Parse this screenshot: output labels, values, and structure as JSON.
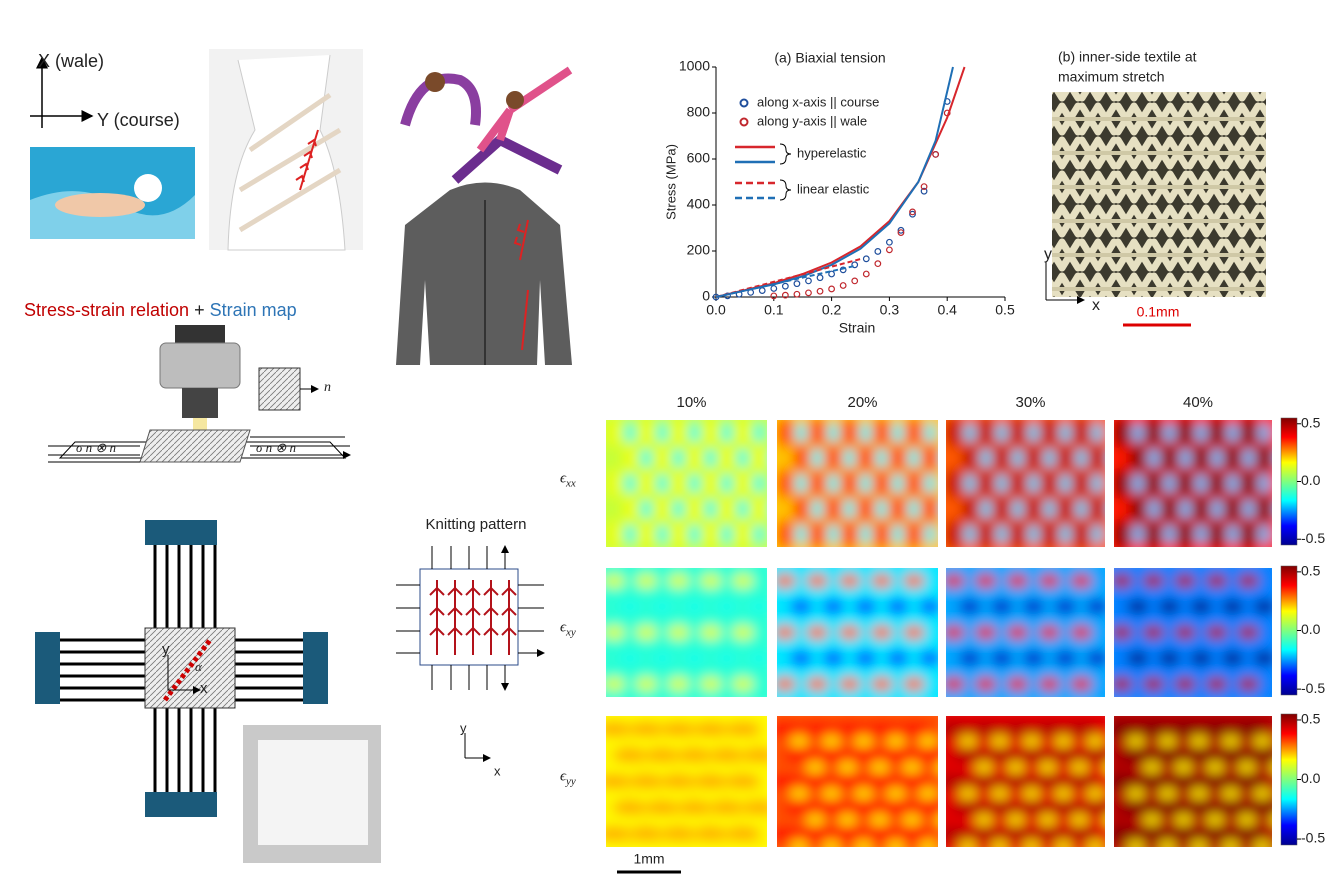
{
  "figure": {
    "axes_label": {
      "x": "X (wale)",
      "y": "Y (course)"
    },
    "method": {
      "left": "Stress-strain relation",
      "plus": "+",
      "right": "Strain map"
    },
    "camera": {
      "normal": "n",
      "traction_left": "σ n ⊗ n",
      "traction_right": "σ n ⊗ n"
    },
    "specimen": {
      "y": "y",
      "x": "x",
      "angle": "α"
    },
    "knitting": {
      "title": "Knitting pattern",
      "y": "y",
      "x": "x"
    },
    "textile": {
      "title_lines": [
        "(b) inner-side textile at",
        "maximum stretch"
      ],
      "y": "y",
      "x": "x",
      "scale": "0.1mm"
    },
    "strain_maps": {
      "columns": [
        "10%",
        "20%",
        "30%",
        "40%"
      ],
      "rows": [
        {
          "symbol": "ϵ",
          "subscript": "xx"
        },
        {
          "symbol": "ϵ",
          "subscript": "xy"
        },
        {
          "symbol": "ϵ",
          "subscript": "yy"
        }
      ],
      "colorbar_lim": [
        -0.55,
        0.55
      ],
      "colorbar_ticks": [
        0.5,
        {
          "value": 0,
          "label": "0.0"
        },
        -0.5
      ],
      "scale": "1mm"
    }
  },
  "chart_data": {
    "type": "scatter",
    "title": "(a) Biaxial tension",
    "xlabel": "Strain",
    "ylabel": "Stress (MPa)",
    "xlim": [
      0,
      0.5
    ],
    "ylim": [
      0,
      1000
    ],
    "xticks": [
      {
        "value": 0,
        "label": "0.0"
      },
      0.1,
      0.2,
      0.3,
      0.4,
      0.5
    ],
    "yticks": [
      0,
      200,
      400,
      600,
      800,
      1000
    ],
    "series": [
      {
        "name": "along x-axis || course",
        "color": "#1f4e9c",
        "x": [
          0,
          0.02,
          0.04,
          0.06,
          0.08,
          0.1,
          0.12,
          0.14,
          0.16,
          0.18,
          0.2,
          0.22,
          0.24,
          0.26,
          0.28,
          0.3,
          0.32,
          0.34,
          0.36,
          0.38,
          0.4
        ],
        "values": [
          0,
          5,
          12,
          20,
          28,
          37,
          47,
          58,
          70,
          84,
          100,
          118,
          140,
          166,
          198,
          238,
          290,
          360,
          460,
          620,
          850
        ]
      },
      {
        "name": "along y-axis || wale",
        "color": "#c0272d",
        "x": [
          0.1,
          0.12,
          0.14,
          0.16,
          0.18,
          0.2,
          0.22,
          0.24,
          0.26,
          0.28,
          0.3,
          0.32,
          0.34,
          0.36,
          0.38,
          0.4
        ],
        "values": [
          5,
          8,
          12,
          18,
          25,
          35,
          50,
          70,
          100,
          145,
          205,
          280,
          370,
          480,
          620,
          800
        ]
      }
    ],
    "fits": [
      {
        "label": "hyperelastic",
        "dashed": false,
        "curves": [
          {
            "color": "#d7262c",
            "x": [
              0,
              0.05,
              0.1,
              0.15,
              0.2,
              0.25,
              0.3,
              0.35,
              0.4,
              0.43
            ],
            "values": [
              0,
              30,
              60,
              100,
              150,
              220,
              330,
              500,
              780,
              1000
            ]
          },
          {
            "color": "#1f6fb5",
            "x": [
              0,
              0.05,
              0.1,
              0.15,
              0.2,
              0.25,
              0.3,
              0.35,
              0.38,
              0.41
            ],
            "values": [
              0,
              28,
              55,
              90,
              140,
              210,
              320,
              500,
              680,
              1000
            ]
          }
        ]
      },
      {
        "label": "linear elastic",
        "dashed": true,
        "curves": [
          {
            "color": "#d7262c",
            "x": [
              0,
              0.25
            ],
            "values": [
              0,
              165
            ]
          },
          {
            "color": "#1f6fb5",
            "x": [
              0,
              0.24
            ],
            "values": [
              0,
              135
            ]
          }
        ]
      }
    ]
  }
}
